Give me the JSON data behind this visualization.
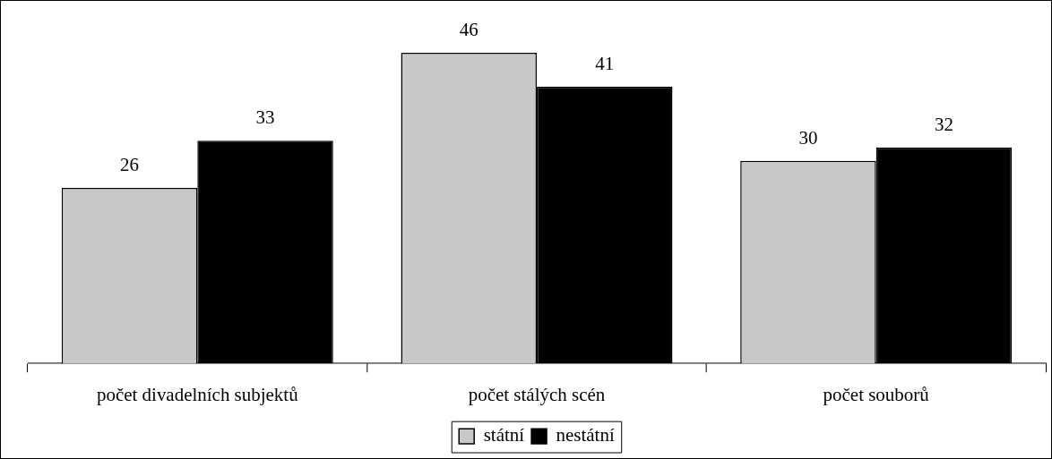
{
  "chart_data": {
    "type": "bar",
    "categories": [
      "počet divadelních subjektů",
      "počet stálých scén",
      "počet souborů"
    ],
    "series": [
      {
        "name": "státní",
        "color": "#c8c8c8",
        "values": [
          26,
          46,
          30
        ]
      },
      {
        "name": "nestátní",
        "color": "#000000",
        "values": [
          33,
          41,
          32
        ]
      }
    ],
    "data_labels": true,
    "legend": "bottom",
    "grid": false
  }
}
